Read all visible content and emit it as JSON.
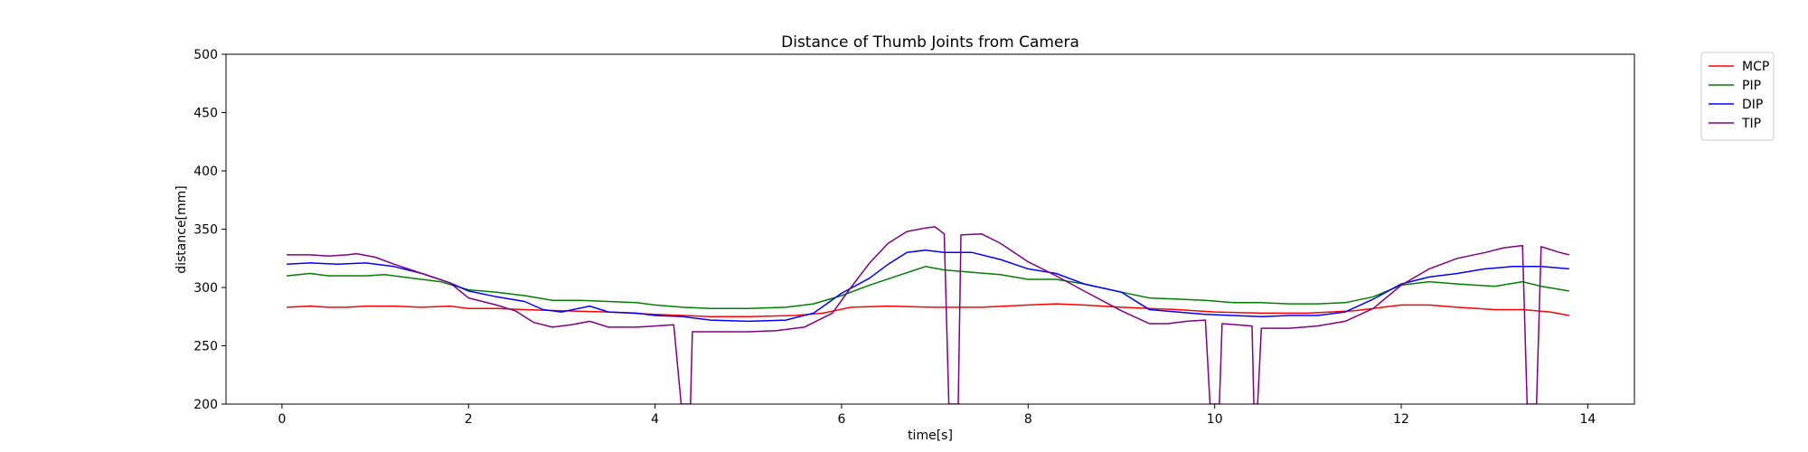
{
  "chart_data": {
    "type": "line",
    "title": "Distance of Thumb Joints from Camera",
    "xlabel": "time[s]",
    "ylabel": "distance[mm]",
    "xlim": [
      -0.6,
      14.5
    ],
    "ylim": [
      200,
      500
    ],
    "xticks": [
      0,
      2,
      4,
      6,
      8,
      10,
      12,
      14
    ],
    "yticks": [
      200,
      250,
      300,
      350,
      400,
      450,
      500
    ],
    "grid": false,
    "legend_position": "outside-top-right",
    "series": [
      {
        "name": "MCP",
        "color": "#ff0000",
        "points": [
          [
            0.05,
            283
          ],
          [
            0.3,
            284
          ],
          [
            0.5,
            283
          ],
          [
            0.7,
            283
          ],
          [
            0.9,
            284
          ],
          [
            1.2,
            284
          ],
          [
            1.5,
            283
          ],
          [
            1.8,
            284
          ],
          [
            2.0,
            282
          ],
          [
            2.3,
            282
          ],
          [
            2.6,
            281
          ],
          [
            3.0,
            280
          ],
          [
            3.5,
            279
          ],
          [
            4.0,
            277
          ],
          [
            4.3,
            276
          ],
          [
            4.6,
            275
          ],
          [
            5.0,
            275
          ],
          [
            5.5,
            276
          ],
          [
            5.8,
            278
          ],
          [
            6.1,
            283
          ],
          [
            6.5,
            284
          ],
          [
            7.0,
            283
          ],
          [
            7.5,
            283
          ],
          [
            8.0,
            285
          ],
          [
            8.3,
            286
          ],
          [
            8.6,
            285
          ],
          [
            9.0,
            283
          ],
          [
            9.3,
            282
          ],
          [
            9.6,
            281
          ],
          [
            10.0,
            279
          ],
          [
            10.5,
            278
          ],
          [
            11.0,
            278
          ],
          [
            11.5,
            280
          ],
          [
            11.8,
            283
          ],
          [
            12.0,
            285
          ],
          [
            12.3,
            285
          ],
          [
            12.6,
            283
          ],
          [
            13.0,
            281
          ],
          [
            13.3,
            281
          ],
          [
            13.6,
            279
          ],
          [
            13.8,
            276
          ]
        ]
      },
      {
        "name": "PIP",
        "color": "#008000",
        "points": [
          [
            0.05,
            310
          ],
          [
            0.3,
            312
          ],
          [
            0.5,
            310
          ],
          [
            0.9,
            310
          ],
          [
            1.1,
            311
          ],
          [
            1.4,
            308
          ],
          [
            1.7,
            305
          ],
          [
            2.0,
            298
          ],
          [
            2.3,
            296
          ],
          [
            2.6,
            293
          ],
          [
            2.9,
            289
          ],
          [
            3.2,
            289
          ],
          [
            3.5,
            288
          ],
          [
            3.8,
            287
          ],
          [
            4.0,
            285
          ],
          [
            4.3,
            283
          ],
          [
            4.6,
            282
          ],
          [
            5.0,
            282
          ],
          [
            5.4,
            283
          ],
          [
            5.7,
            286
          ],
          [
            6.0,
            293
          ],
          [
            6.3,
            302
          ],
          [
            6.6,
            310
          ],
          [
            6.9,
            318
          ],
          [
            7.1,
            315
          ],
          [
            7.4,
            313
          ],
          [
            7.7,
            311
          ],
          [
            8.0,
            307
          ],
          [
            8.3,
            307
          ],
          [
            8.6,
            303
          ],
          [
            9.0,
            296
          ],
          [
            9.3,
            291
          ],
          [
            9.6,
            290
          ],
          [
            9.9,
            289
          ],
          [
            10.2,
            287
          ],
          [
            10.5,
            287
          ],
          [
            10.8,
            286
          ],
          [
            11.1,
            286
          ],
          [
            11.4,
            287
          ],
          [
            11.7,
            292
          ],
          [
            12.0,
            302
          ],
          [
            12.3,
            305
          ],
          [
            12.6,
            303
          ],
          [
            13.0,
            301
          ],
          [
            13.3,
            305
          ],
          [
            13.5,
            301
          ],
          [
            13.8,
            297
          ]
        ]
      },
      {
        "name": "DIP",
        "color": "#0000ff",
        "points": [
          [
            0.05,
            320
          ],
          [
            0.3,
            321
          ],
          [
            0.6,
            320
          ],
          [
            0.9,
            321
          ],
          [
            1.2,
            318
          ],
          [
            1.5,
            312
          ],
          [
            1.8,
            304
          ],
          [
            2.0,
            297
          ],
          [
            2.3,
            292
          ],
          [
            2.6,
            288
          ],
          [
            2.8,
            281
          ],
          [
            3.0,
            279
          ],
          [
            3.3,
            284
          ],
          [
            3.5,
            279
          ],
          [
            3.8,
            278
          ],
          [
            4.0,
            276
          ],
          [
            4.3,
            275
          ],
          [
            4.6,
            272
          ],
          [
            5.0,
            271
          ],
          [
            5.4,
            272
          ],
          [
            5.7,
            278
          ],
          [
            6.0,
            295
          ],
          [
            6.3,
            308
          ],
          [
            6.5,
            320
          ],
          [
            6.7,
            330
          ],
          [
            6.9,
            332
          ],
          [
            7.1,
            330
          ],
          [
            7.4,
            330
          ],
          [
            7.7,
            324
          ],
          [
            8.0,
            316
          ],
          [
            8.3,
            312
          ],
          [
            8.6,
            303
          ],
          [
            9.0,
            296
          ],
          [
            9.3,
            281
          ],
          [
            9.6,
            279
          ],
          [
            9.9,
            277
          ],
          [
            10.2,
            276
          ],
          [
            10.5,
            275
          ],
          [
            10.8,
            276
          ],
          [
            11.1,
            276
          ],
          [
            11.4,
            279
          ],
          [
            11.7,
            290
          ],
          [
            12.0,
            303
          ],
          [
            12.3,
            309
          ],
          [
            12.6,
            312
          ],
          [
            12.9,
            316
          ],
          [
            13.2,
            318
          ],
          [
            13.5,
            318
          ],
          [
            13.8,
            316
          ]
        ]
      },
      {
        "name": "TIP",
        "color": "#800080",
        "points": [
          [
            0.05,
            328
          ],
          [
            0.3,
            328
          ],
          [
            0.5,
            327
          ],
          [
            0.7,
            328
          ],
          [
            0.8,
            329
          ],
          [
            1.0,
            326
          ],
          [
            1.2,
            320
          ],
          [
            1.5,
            312
          ],
          [
            1.8,
            304
          ],
          [
            2.0,
            291
          ],
          [
            2.3,
            285
          ],
          [
            2.5,
            280
          ],
          [
            2.7,
            270
          ],
          [
            2.9,
            266
          ],
          [
            3.1,
            268
          ],
          [
            3.3,
            271
          ],
          [
            3.5,
            266
          ],
          [
            3.8,
            266
          ],
          [
            4.0,
            267
          ],
          [
            4.2,
            268
          ],
          [
            4.28,
            200
          ],
          [
            4.38,
            200
          ],
          [
            4.4,
            262
          ],
          [
            4.7,
            262
          ],
          [
            5.0,
            262
          ],
          [
            5.3,
            263
          ],
          [
            5.6,
            266
          ],
          [
            5.9,
            278
          ],
          [
            6.1,
            300
          ],
          [
            6.3,
            321
          ],
          [
            6.5,
            338
          ],
          [
            6.7,
            348
          ],
          [
            6.9,
            351
          ],
          [
            7.0,
            352
          ],
          [
            7.1,
            346
          ],
          [
            7.15,
            200
          ],
          [
            7.25,
            200
          ],
          [
            7.28,
            345
          ],
          [
            7.5,
            346
          ],
          [
            7.7,
            338
          ],
          [
            8.0,
            322
          ],
          [
            8.3,
            310
          ],
          [
            8.6,
            297
          ],
          [
            9.0,
            280
          ],
          [
            9.3,
            269
          ],
          [
            9.5,
            269
          ],
          [
            9.7,
            271
          ],
          [
            9.9,
            272
          ],
          [
            9.95,
            200
          ],
          [
            10.05,
            200
          ],
          [
            10.08,
            269
          ],
          [
            10.4,
            267
          ],
          [
            10.42,
            200
          ],
          [
            10.46,
            200
          ],
          [
            10.5,
            265
          ],
          [
            10.8,
            265
          ],
          [
            11.1,
            267
          ],
          [
            11.4,
            271
          ],
          [
            11.7,
            282
          ],
          [
            12.0,
            302
          ],
          [
            12.3,
            316
          ],
          [
            12.6,
            325
          ],
          [
            12.9,
            330
          ],
          [
            13.1,
            334
          ],
          [
            13.3,
            336
          ],
          [
            13.35,
            200
          ],
          [
            13.45,
            200
          ],
          [
            13.5,
            335
          ],
          [
            13.7,
            330
          ],
          [
            13.8,
            328
          ]
        ]
      }
    ]
  }
}
